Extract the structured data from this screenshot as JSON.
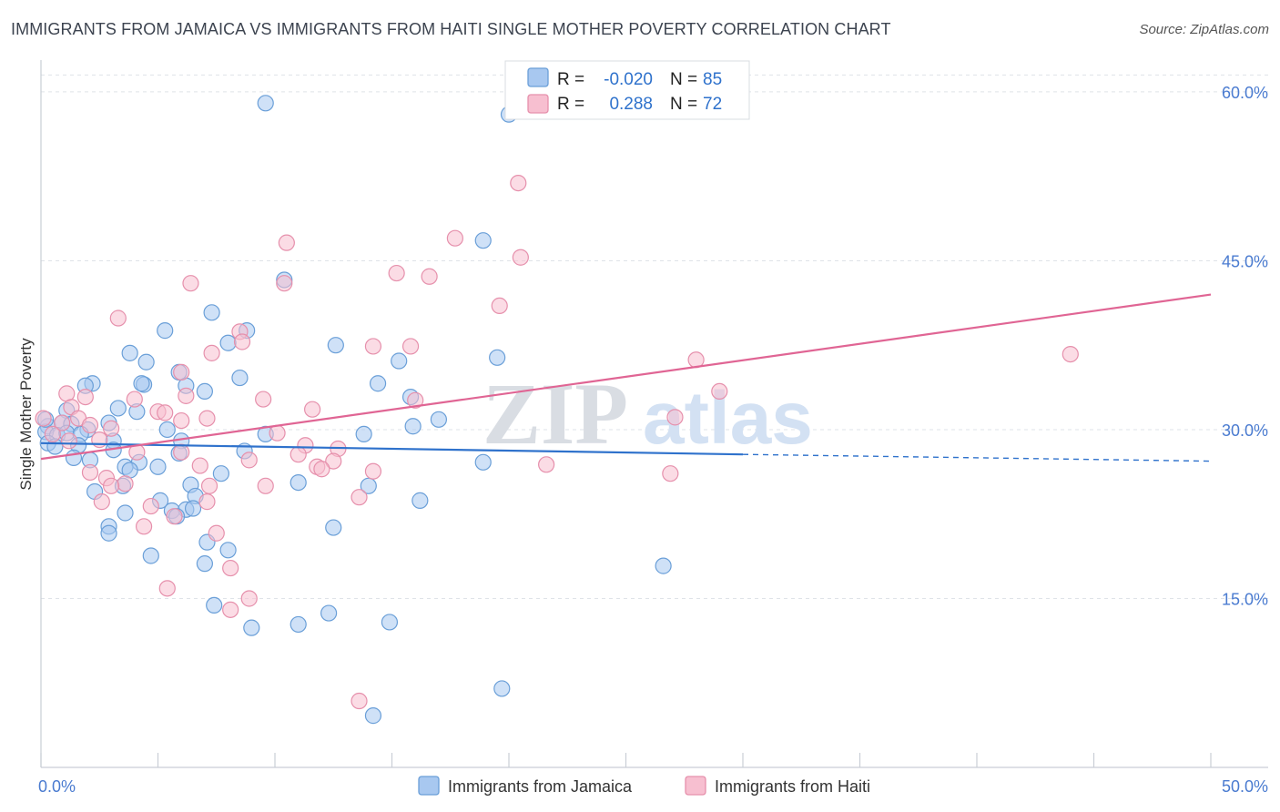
{
  "header": {
    "title": "IMMIGRANTS FROM JAMAICA VS IMMIGRANTS FROM HAITI SINGLE MOTHER POVERTY CORRELATION CHART",
    "source": "Source: ZipAtlas.com"
  },
  "watermark": {
    "zip": "ZIP",
    "atlas": "atlas"
  },
  "colors": {
    "jamaica_fill": "#a8c8f0",
    "jamaica_stroke": "#6a9fd8",
    "jamaica_line": "#2f72cc",
    "haiti_fill": "#f7bfd0",
    "haiti_stroke": "#e690ac",
    "haiti_line": "#e06594",
    "axis_label": "#4a7bd0"
  },
  "chart_data": {
    "type": "scatter",
    "title": "IMMIGRANTS FROM JAMAICA VS IMMIGRANTS FROM HAITI SINGLE MOTHER POVERTY CORRELATION CHART",
    "xlabel": "",
    "ylabel": "Single Mother Poverty",
    "xlim": [
      0,
      50
    ],
    "ylim": [
      0,
      62.5
    ],
    "x_tick_labels": {
      "left": "0.0%",
      "right": "50.0%"
    },
    "y_ticks": [
      {
        "value": 15,
        "label": "15.0%"
      },
      {
        "value": 30,
        "label": "30.0%"
      },
      {
        "value": 45,
        "label": "45.0%"
      },
      {
        "value": 60,
        "label": "60.0%"
      }
    ],
    "legend_stats": [
      {
        "r_label": "R =",
        "r_value": "-0.020",
        "n_label": "N =",
        "n_value": "85"
      },
      {
        "r_label": "R =",
        "r_value": "0.288",
        "n_label": "N =",
        "n_value": "72"
      }
    ],
    "series": [
      {
        "name": "Immigrants from Jamaica",
        "r": -0.02,
        "n": 85,
        "trend": {
          "x0": 0,
          "y0": 28.8,
          "x1": 30,
          "y1": 27.8,
          "dashed_to_x": 50,
          "dashed_to_y": 27.2
        },
        "points": [
          [
            9.6,
            59.0
          ],
          [
            20.0,
            58.0
          ],
          [
            18.9,
            46.8
          ],
          [
            10.4,
            43.3
          ],
          [
            7.3,
            40.4
          ],
          [
            5.3,
            38.8
          ],
          [
            8.8,
            38.8
          ],
          [
            8.0,
            37.7
          ],
          [
            3.8,
            36.8
          ],
          [
            12.6,
            37.5
          ],
          [
            19.5,
            36.4
          ],
          [
            4.5,
            36.0
          ],
          [
            15.3,
            36.1
          ],
          [
            5.9,
            35.1
          ],
          [
            8.5,
            34.6
          ],
          [
            2.2,
            34.1
          ],
          [
            1.9,
            33.9
          ],
          [
            4.4,
            34.0
          ],
          [
            4.3,
            34.1
          ],
          [
            6.2,
            33.9
          ],
          [
            14.4,
            34.1
          ],
          [
            7.0,
            33.4
          ],
          [
            15.8,
            32.9
          ],
          [
            1.1,
            31.7
          ],
          [
            3.3,
            31.9
          ],
          [
            4.1,
            31.6
          ],
          [
            17.0,
            30.9
          ],
          [
            0.3,
            30.3
          ],
          [
            0.9,
            30.6
          ],
          [
            1.3,
            30.5
          ],
          [
            2.0,
            30.0
          ],
          [
            2.9,
            30.6
          ],
          [
            5.4,
            30.0
          ],
          [
            15.9,
            30.3
          ],
          [
            0.2,
            29.8
          ],
          [
            0.7,
            29.5
          ],
          [
            1.1,
            29.7
          ],
          [
            1.7,
            29.6
          ],
          [
            3.1,
            29.0
          ],
          [
            6.0,
            29.0
          ],
          [
            9.6,
            29.6
          ],
          [
            13.8,
            29.6
          ],
          [
            0.3,
            28.8
          ],
          [
            0.6,
            28.5
          ],
          [
            1.6,
            28.6
          ],
          [
            3.1,
            28.2
          ],
          [
            5.9,
            27.9
          ],
          [
            8.7,
            28.1
          ],
          [
            1.4,
            27.5
          ],
          [
            2.1,
            27.3
          ],
          [
            4.2,
            27.1
          ],
          [
            3.6,
            26.7
          ],
          [
            5.0,
            26.7
          ],
          [
            7.7,
            26.1
          ],
          [
            3.8,
            26.4
          ],
          [
            18.9,
            27.1
          ],
          [
            3.5,
            25.0
          ],
          [
            6.4,
            25.1
          ],
          [
            11.0,
            25.3
          ],
          [
            14.0,
            25.0
          ],
          [
            2.3,
            24.5
          ],
          [
            6.6,
            24.1
          ],
          [
            5.1,
            23.7
          ],
          [
            5.6,
            22.8
          ],
          [
            6.2,
            22.9
          ],
          [
            6.5,
            23.0
          ],
          [
            16.2,
            23.7
          ],
          [
            3.6,
            22.6
          ],
          [
            5.8,
            22.3
          ],
          [
            2.9,
            21.4
          ],
          [
            12.5,
            21.3
          ],
          [
            2.9,
            20.8
          ],
          [
            7.1,
            20.0
          ],
          [
            4.7,
            18.8
          ],
          [
            8.0,
            19.3
          ],
          [
            7.0,
            18.1
          ],
          [
            26.6,
            17.9
          ],
          [
            7.4,
            14.4
          ],
          [
            12.3,
            13.7
          ],
          [
            9.0,
            12.4
          ],
          [
            11.0,
            12.7
          ],
          [
            14.9,
            12.9
          ],
          [
            0.2,
            30.9
          ],
          [
            19.7,
            7.0
          ],
          [
            14.2,
            4.6
          ]
        ]
      },
      {
        "name": "Immigrants from Haiti",
        "r": 0.288,
        "n": 72,
        "trend": {
          "x0": 0,
          "y0": 27.4,
          "x1": 50,
          "y1": 42.0
        },
        "points": [
          [
            20.4,
            51.9
          ],
          [
            10.5,
            46.6
          ],
          [
            17.7,
            47.0
          ],
          [
            20.5,
            45.3
          ],
          [
            15.2,
            43.9
          ],
          [
            16.6,
            43.6
          ],
          [
            6.4,
            43.0
          ],
          [
            10.4,
            43.0
          ],
          [
            19.6,
            41.0
          ],
          [
            3.3,
            39.9
          ],
          [
            8.5,
            38.7
          ],
          [
            8.6,
            37.8
          ],
          [
            14.2,
            37.4
          ],
          [
            15.8,
            37.4
          ],
          [
            7.3,
            36.8
          ],
          [
            28.0,
            36.2
          ],
          [
            44.0,
            36.7
          ],
          [
            6.0,
            35.1
          ],
          [
            1.1,
            33.2
          ],
          [
            4.0,
            32.7
          ],
          [
            6.2,
            33.0
          ],
          [
            9.5,
            32.7
          ],
          [
            16.0,
            32.6
          ],
          [
            29.0,
            33.4
          ],
          [
            1.9,
            32.9
          ],
          [
            1.3,
            32.0
          ],
          [
            5.0,
            31.6
          ],
          [
            5.3,
            31.5
          ],
          [
            11.6,
            31.8
          ],
          [
            0.1,
            31.0
          ],
          [
            0.9,
            30.6
          ],
          [
            1.6,
            31.0
          ],
          [
            2.1,
            30.4
          ],
          [
            3.0,
            30.1
          ],
          [
            6.0,
            30.8
          ],
          [
            7.1,
            31.0
          ],
          [
            27.1,
            31.1
          ],
          [
            0.5,
            29.6
          ],
          [
            1.2,
            29.0
          ],
          [
            2.5,
            29.1
          ],
          [
            10.1,
            29.7
          ],
          [
            11.3,
            28.6
          ],
          [
            12.7,
            28.3
          ],
          [
            4.1,
            28.0
          ],
          [
            6.0,
            28.0
          ],
          [
            11.0,
            27.8
          ],
          [
            8.9,
            27.3
          ],
          [
            12.5,
            27.2
          ],
          [
            6.8,
            26.8
          ],
          [
            11.8,
            26.7
          ],
          [
            12.0,
            26.5
          ],
          [
            14.2,
            26.3
          ],
          [
            21.6,
            26.9
          ],
          [
            2.1,
            26.2
          ],
          [
            2.8,
            25.7
          ],
          [
            3.6,
            25.2
          ],
          [
            3.0,
            25.0
          ],
          [
            7.2,
            25.0
          ],
          [
            9.6,
            25.0
          ],
          [
            26.9,
            26.1
          ],
          [
            13.6,
            24.0
          ],
          [
            2.6,
            23.6
          ],
          [
            4.7,
            23.2
          ],
          [
            7.1,
            23.6
          ],
          [
            5.7,
            22.3
          ],
          [
            4.4,
            21.4
          ],
          [
            7.5,
            20.8
          ],
          [
            8.1,
            17.7
          ],
          [
            5.4,
            15.9
          ],
          [
            8.9,
            15.0
          ],
          [
            8.1,
            14.0
          ],
          [
            13.6,
            5.9
          ]
        ]
      }
    ],
    "legend": {
      "placement": "bottom-center",
      "entries": [
        "Immigrants from Jamaica",
        "Immigrants from Haiti"
      ]
    }
  }
}
